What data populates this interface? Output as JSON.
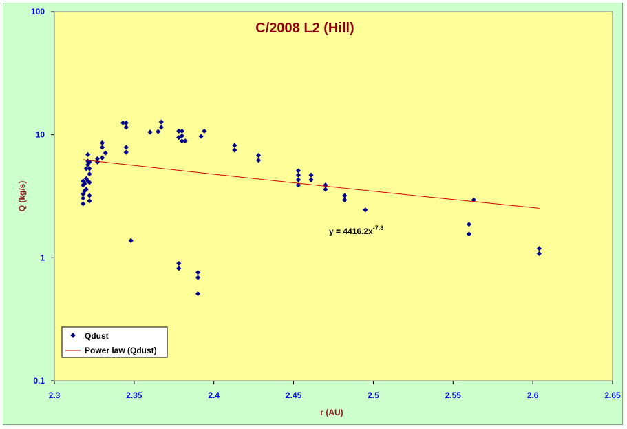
{
  "chart_data": {
    "type": "scatter",
    "title": "C/2008 L2 (Hill)",
    "xlabel": "r (AU)",
    "ylabel": "Q (kg/s)",
    "xlim": [
      2.3,
      2.65
    ],
    "ylim": [
      0.1,
      100
    ],
    "y_scale": "log",
    "x_ticks": [
      "2.3",
      "2.35",
      "2.4",
      "2.45",
      "2.5",
      "2.55",
      "2.6",
      "2.65"
    ],
    "y_ticks": [
      "0.1",
      "1",
      "10",
      "100"
    ],
    "grid": false,
    "legend_position": "bottom-left",
    "colors": {
      "background": "#ccffcc",
      "plot_area": "#ffff99",
      "markers": "#00008b",
      "trendline": "#cc0000",
      "title": "#8b0000",
      "tick_labels": "#0000ff"
    },
    "series": [
      {
        "name": "Qdust",
        "marker": "diamond",
        "points": [
          [
            2.318,
            2.75
          ],
          [
            2.318,
            3.05
          ],
          [
            2.318,
            3.3
          ],
          [
            2.318,
            3.9
          ],
          [
            2.318,
            4.2
          ],
          [
            2.319,
            3.5
          ],
          [
            2.319,
            4.0
          ],
          [
            2.32,
            3.6
          ],
          [
            2.32,
            4.4
          ],
          [
            2.32,
            5.3
          ],
          [
            2.321,
            4.2
          ],
          [
            2.321,
            5.7
          ],
          [
            2.321,
            6.1
          ],
          [
            2.321,
            6.9
          ],
          [
            2.322,
            2.9
          ],
          [
            2.322,
            3.2
          ],
          [
            2.322,
            4.1
          ],
          [
            2.322,
            4.8
          ],
          [
            2.322,
            5.3
          ],
          [
            2.322,
            6.0
          ],
          [
            2.327,
            6.0
          ],
          [
            2.327,
            6.4
          ],
          [
            2.33,
            6.5
          ],
          [
            2.33,
            7.9
          ],
          [
            2.33,
            8.6
          ],
          [
            2.332,
            7.1
          ],
          [
            2.343,
            12.5
          ],
          [
            2.345,
            11.5
          ],
          [
            2.345,
            12.5
          ],
          [
            2.345,
            7.9
          ],
          [
            2.345,
            7.2
          ],
          [
            2.348,
            1.38
          ],
          [
            2.36,
            10.5
          ],
          [
            2.365,
            10.6
          ],
          [
            2.367,
            11.5
          ],
          [
            2.367,
            12.7
          ],
          [
            2.378,
            10.7
          ],
          [
            2.378,
            9.5
          ],
          [
            2.378,
            0.9
          ],
          [
            2.378,
            0.82
          ],
          [
            2.38,
            10.7
          ],
          [
            2.38,
            9.8
          ],
          [
            2.38,
            8.9
          ],
          [
            2.382,
            8.9
          ],
          [
            2.39,
            0.76
          ],
          [
            2.39,
            0.69
          ],
          [
            2.39,
            0.51
          ],
          [
            2.392,
            9.7
          ],
          [
            2.394,
            10.7
          ],
          [
            2.413,
            8.2
          ],
          [
            2.413,
            7.5
          ],
          [
            2.428,
            6.8
          ],
          [
            2.428,
            6.2
          ],
          [
            2.453,
            5.1
          ],
          [
            2.453,
            4.7
          ],
          [
            2.453,
            4.3
          ],
          [
            2.453,
            3.9
          ],
          [
            2.461,
            4.7
          ],
          [
            2.461,
            4.3
          ],
          [
            2.47,
            3.9
          ],
          [
            2.47,
            3.6
          ],
          [
            2.482,
            3.2
          ],
          [
            2.482,
            2.95
          ],
          [
            2.495,
            2.45
          ],
          [
            2.56,
            1.87
          ],
          [
            2.56,
            1.56
          ],
          [
            2.563,
            2.95
          ],
          [
            2.604,
            1.19
          ],
          [
            2.604,
            1.08
          ]
        ]
      },
      {
        "name": "Power law (Qdust)",
        "type": "line",
        "equation": "y = 4416.2x",
        "equation_exponent": "-7.8",
        "coefficient": 4416.2,
        "exponent": -7.8,
        "x_range": [
          2.318,
          2.604
        ]
      }
    ]
  }
}
